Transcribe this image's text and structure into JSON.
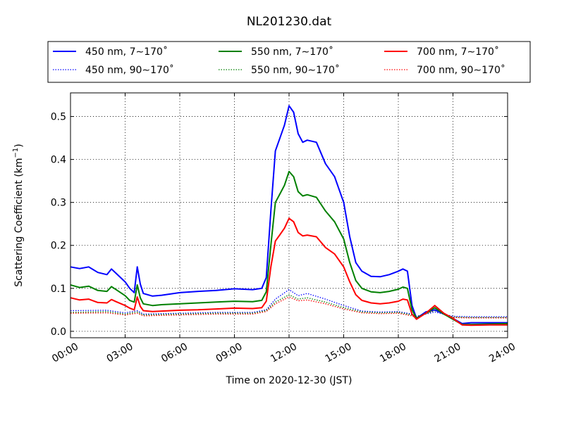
{
  "chart_data": {
    "type": "line",
    "title": "NL201230.dat",
    "xlabel": "Time on 2020-12-30 (JST)",
    "ylabel": "Scattering Coefficient (km",
    "ylabel_sup": "−1",
    "ylabel_close": ")",
    "xlim": [
      "00:00",
      "24:00"
    ],
    "ylim": [
      -0.015,
      0.555
    ],
    "grid": true,
    "legend_position": "top",
    "x_ticks": [
      "00:00",
      "03:00",
      "06:00",
      "09:00",
      "12:00",
      "15:00",
      "18:00",
      "21:00",
      "24:00"
    ],
    "y_ticks": [
      "0.0",
      "0.1",
      "0.2",
      "0.3",
      "0.4",
      "0.5"
    ],
    "series": [
      {
        "name": "450 nm, 7∼170˚",
        "color": "#0000ff",
        "style": "solid",
        "points": [
          [
            "00:00",
            0.15
          ],
          [
            "00:30",
            0.146
          ],
          [
            "01:00",
            0.15
          ],
          [
            "01:30",
            0.137
          ],
          [
            "02:00",
            0.132
          ],
          [
            "02:15",
            0.145
          ],
          [
            "02:30",
            0.135
          ],
          [
            "03:00",
            0.115
          ],
          [
            "03:15",
            0.1
          ],
          [
            "03:30",
            0.09
          ],
          [
            "03:40",
            0.15
          ],
          [
            "03:50",
            0.11
          ],
          [
            "04:00",
            0.088
          ],
          [
            "04:30",
            0.082
          ],
          [
            "05:00",
            0.084
          ],
          [
            "06:00",
            0.09
          ],
          [
            "07:00",
            0.093
          ],
          [
            "08:00",
            0.095
          ],
          [
            "09:00",
            0.099
          ],
          [
            "10:00",
            0.097
          ],
          [
            "10:30",
            0.1
          ],
          [
            "10:45",
            0.125
          ],
          [
            "11:00",
            0.28
          ],
          [
            "11:15",
            0.42
          ],
          [
            "11:30",
            0.45
          ],
          [
            "11:45",
            0.48
          ],
          [
            "12:00",
            0.525
          ],
          [
            "12:15",
            0.51
          ],
          [
            "12:30",
            0.46
          ],
          [
            "12:45",
            0.44
          ],
          [
            "13:00",
            0.445
          ],
          [
            "13:30",
            0.44
          ],
          [
            "14:00",
            0.39
          ],
          [
            "14:30",
            0.36
          ],
          [
            "15:00",
            0.3
          ],
          [
            "15:20",
            0.22
          ],
          [
            "15:40",
            0.16
          ],
          [
            "16:00",
            0.14
          ],
          [
            "16:30",
            0.128
          ],
          [
            "17:00",
            0.127
          ],
          [
            "17:30",
            0.132
          ],
          [
            "18:00",
            0.14
          ],
          [
            "18:15",
            0.145
          ],
          [
            "18:30",
            0.14
          ],
          [
            "18:45",
            0.06
          ],
          [
            "19:00",
            0.03
          ],
          [
            "19:30",
            0.045
          ],
          [
            "20:00",
            0.05
          ],
          [
            "20:30",
            0.04
          ],
          [
            "21:00",
            0.03
          ],
          [
            "21:30",
            0.018
          ],
          [
            "22:00",
            0.02
          ],
          [
            "23:00",
            0.02
          ],
          [
            "24:00",
            0.02
          ]
        ]
      },
      {
        "name": "550 nm, 7∼170˚",
        "color": "#008000",
        "style": "solid",
        "points": [
          [
            "00:00",
            0.108
          ],
          [
            "00:30",
            0.102
          ],
          [
            "01:00",
            0.105
          ],
          [
            "01:30",
            0.095
          ],
          [
            "02:00",
            0.093
          ],
          [
            "02:15",
            0.104
          ],
          [
            "02:30",
            0.097
          ],
          [
            "03:00",
            0.083
          ],
          [
            "03:15",
            0.072
          ],
          [
            "03:30",
            0.068
          ],
          [
            "03:40",
            0.108
          ],
          [
            "03:50",
            0.078
          ],
          [
            "04:00",
            0.064
          ],
          [
            "04:30",
            0.06
          ],
          [
            "05:00",
            0.062
          ],
          [
            "06:00",
            0.064
          ],
          [
            "07:00",
            0.066
          ],
          [
            "08:00",
            0.068
          ],
          [
            "09:00",
            0.07
          ],
          [
            "10:00",
            0.069
          ],
          [
            "10:30",
            0.072
          ],
          [
            "10:45",
            0.092
          ],
          [
            "11:00",
            0.2
          ],
          [
            "11:15",
            0.3
          ],
          [
            "11:30",
            0.32
          ],
          [
            "11:45",
            0.34
          ],
          [
            "12:00",
            0.372
          ],
          [
            "12:15",
            0.36
          ],
          [
            "12:30",
            0.325
          ],
          [
            "12:45",
            0.315
          ],
          [
            "13:00",
            0.318
          ],
          [
            "13:30",
            0.312
          ],
          [
            "14:00",
            0.28
          ],
          [
            "14:30",
            0.255
          ],
          [
            "15:00",
            0.215
          ],
          [
            "15:20",
            0.16
          ],
          [
            "15:40",
            0.118
          ],
          [
            "16:00",
            0.1
          ],
          [
            "16:30",
            0.092
          ],
          [
            "17:00",
            0.09
          ],
          [
            "17:30",
            0.093
          ],
          [
            "18:00",
            0.098
          ],
          [
            "18:15",
            0.103
          ],
          [
            "18:30",
            0.1
          ],
          [
            "18:45",
            0.05
          ],
          [
            "19:00",
            0.03
          ],
          [
            "19:30",
            0.042
          ],
          [
            "20:00",
            0.055
          ],
          [
            "20:30",
            0.04
          ],
          [
            "21:00",
            0.028
          ],
          [
            "21:30",
            0.016
          ],
          [
            "22:00",
            0.016
          ],
          [
            "23:00",
            0.017
          ],
          [
            "24:00",
            0.018
          ]
        ]
      },
      {
        "name": "700 nm, 7∼170˚",
        "color": "#ff0000",
        "style": "solid",
        "points": [
          [
            "00:00",
            0.078
          ],
          [
            "00:30",
            0.073
          ],
          [
            "01:00",
            0.075
          ],
          [
            "01:30",
            0.067
          ],
          [
            "02:00",
            0.066
          ],
          [
            "02:15",
            0.074
          ],
          [
            "02:30",
            0.069
          ],
          [
            "03:00",
            0.06
          ],
          [
            "03:15",
            0.054
          ],
          [
            "03:30",
            0.05
          ],
          [
            "03:40",
            0.08
          ],
          [
            "03:50",
            0.058
          ],
          [
            "04:00",
            0.048
          ],
          [
            "04:30",
            0.046
          ],
          [
            "05:00",
            0.047
          ],
          [
            "06:00",
            0.049
          ],
          [
            "07:00",
            0.05
          ],
          [
            "08:00",
            0.052
          ],
          [
            "09:00",
            0.054
          ],
          [
            "10:00",
            0.053
          ],
          [
            "10:30",
            0.055
          ],
          [
            "10:45",
            0.07
          ],
          [
            "11:00",
            0.15
          ],
          [
            "11:15",
            0.21
          ],
          [
            "11:30",
            0.225
          ],
          [
            "11:45",
            0.24
          ],
          [
            "12:00",
            0.263
          ],
          [
            "12:15",
            0.255
          ],
          [
            "12:30",
            0.23
          ],
          [
            "12:45",
            0.222
          ],
          [
            "13:00",
            0.224
          ],
          [
            "13:30",
            0.22
          ],
          [
            "14:00",
            0.195
          ],
          [
            "14:30",
            0.18
          ],
          [
            "15:00",
            0.15
          ],
          [
            "15:20",
            0.115
          ],
          [
            "15:40",
            0.085
          ],
          [
            "16:00",
            0.072
          ],
          [
            "16:30",
            0.066
          ],
          [
            "17:00",
            0.064
          ],
          [
            "17:30",
            0.066
          ],
          [
            "18:00",
            0.07
          ],
          [
            "18:15",
            0.075
          ],
          [
            "18:30",
            0.073
          ],
          [
            "18:45",
            0.04
          ],
          [
            "19:00",
            0.028
          ],
          [
            "19:30",
            0.042
          ],
          [
            "20:00",
            0.06
          ],
          [
            "20:30",
            0.042
          ],
          [
            "21:00",
            0.03
          ],
          [
            "21:30",
            0.015
          ],
          [
            "22:00",
            0.014
          ],
          [
            "23:00",
            0.015
          ],
          [
            "24:00",
            0.015
          ]
        ]
      },
      {
        "name": "450 nm, 90∼170˚",
        "color": "#0000ff",
        "style": "dotted",
        "points": [
          [
            "00:00",
            0.048
          ],
          [
            "02:00",
            0.049
          ],
          [
            "03:00",
            0.043
          ],
          [
            "03:40",
            0.048
          ],
          [
            "04:00",
            0.04
          ],
          [
            "06:00",
            0.042
          ],
          [
            "08:00",
            0.044
          ],
          [
            "10:00",
            0.044
          ],
          [
            "10:45",
            0.05
          ],
          [
            "11:15",
            0.075
          ],
          [
            "12:00",
            0.097
          ],
          [
            "12:30",
            0.083
          ],
          [
            "13:00",
            0.088
          ],
          [
            "14:00",
            0.075
          ],
          [
            "15:00",
            0.06
          ],
          [
            "16:00",
            0.047
          ],
          [
            "17:00",
            0.045
          ],
          [
            "18:00",
            0.046
          ],
          [
            "18:45",
            0.04
          ],
          [
            "19:00",
            0.035
          ],
          [
            "20:00",
            0.045
          ],
          [
            "21:00",
            0.035
          ],
          [
            "22:00",
            0.034
          ],
          [
            "24:00",
            0.034
          ]
        ]
      },
      {
        "name": "550 nm, 90∼170˚",
        "color": "#008000",
        "style": "dotted",
        "points": [
          [
            "00:00",
            0.044
          ],
          [
            "02:00",
            0.046
          ],
          [
            "03:00",
            0.04
          ],
          [
            "03:40",
            0.045
          ],
          [
            "04:00",
            0.038
          ],
          [
            "06:00",
            0.04
          ],
          [
            "08:00",
            0.042
          ],
          [
            "10:00",
            0.042
          ],
          [
            "10:45",
            0.048
          ],
          [
            "11:15",
            0.068
          ],
          [
            "12:00",
            0.085
          ],
          [
            "12:30",
            0.075
          ],
          [
            "13:00",
            0.078
          ],
          [
            "14:00",
            0.068
          ],
          [
            "15:00",
            0.055
          ],
          [
            "16:00",
            0.045
          ],
          [
            "17:00",
            0.043
          ],
          [
            "18:00",
            0.044
          ],
          [
            "18:45",
            0.038
          ],
          [
            "19:00",
            0.034
          ],
          [
            "20:00",
            0.048
          ],
          [
            "21:00",
            0.033
          ],
          [
            "22:00",
            0.032
          ],
          [
            "24:00",
            0.032
          ]
        ]
      },
      {
        "name": "700 nm, 90∼170˚",
        "color": "#ff0000",
        "style": "dotted",
        "points": [
          [
            "00:00",
            0.042
          ],
          [
            "02:00",
            0.043
          ],
          [
            "03:00",
            0.038
          ],
          [
            "03:40",
            0.042
          ],
          [
            "04:00",
            0.036
          ],
          [
            "06:00",
            0.038
          ],
          [
            "08:00",
            0.04
          ],
          [
            "10:00",
            0.04
          ],
          [
            "10:45",
            0.046
          ],
          [
            "11:15",
            0.064
          ],
          [
            "12:00",
            0.08
          ],
          [
            "12:30",
            0.071
          ],
          [
            "13:00",
            0.073
          ],
          [
            "14:00",
            0.064
          ],
          [
            "15:00",
            0.052
          ],
          [
            "16:00",
            0.043
          ],
          [
            "17:00",
            0.041
          ],
          [
            "18:00",
            0.042
          ],
          [
            "18:45",
            0.036
          ],
          [
            "19:00",
            0.032
          ],
          [
            "20:00",
            0.05
          ],
          [
            "21:00",
            0.032
          ],
          [
            "22:00",
            0.031
          ],
          [
            "24:00",
            0.031
          ]
        ]
      }
    ]
  }
}
